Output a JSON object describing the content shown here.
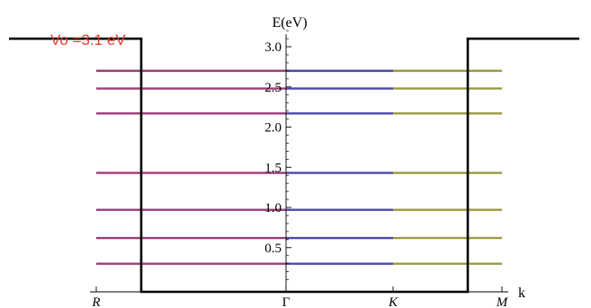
{
  "chart_data": {
    "type": "line",
    "title": "",
    "ylabel": "E(eV)",
    "xlabel": "k",
    "x_ticks": [
      "R",
      "Γ",
      "K",
      "M"
    ],
    "y_ticks": [
      "0.5",
      "1.0",
      "1.5",
      "2.0",
      "2.5",
      "3.0"
    ],
    "ylim": [
      -0.05,
      3.2
    ],
    "grid": false,
    "energy_levels": [
      0.3,
      0.62,
      0.97,
      1.43,
      2.17,
      2.48,
      2.7
    ],
    "series": [
      {
        "x_range": [
          "R",
          "Γ"
        ],
        "color": "#9b3c77"
      },
      {
        "x_range": [
          "Γ",
          "K"
        ],
        "color": "#4848a8"
      },
      {
        "x_range": [
          "K",
          "M"
        ],
        "color": "#9a9a40"
      }
    ],
    "potential_well": {
      "annotation": "Vo =3.1 eV",
      "annotation_color": "#e0402f",
      "depth_eV": 3.1,
      "bottom_eV": -0.05,
      "line_color": "#000000"
    }
  }
}
